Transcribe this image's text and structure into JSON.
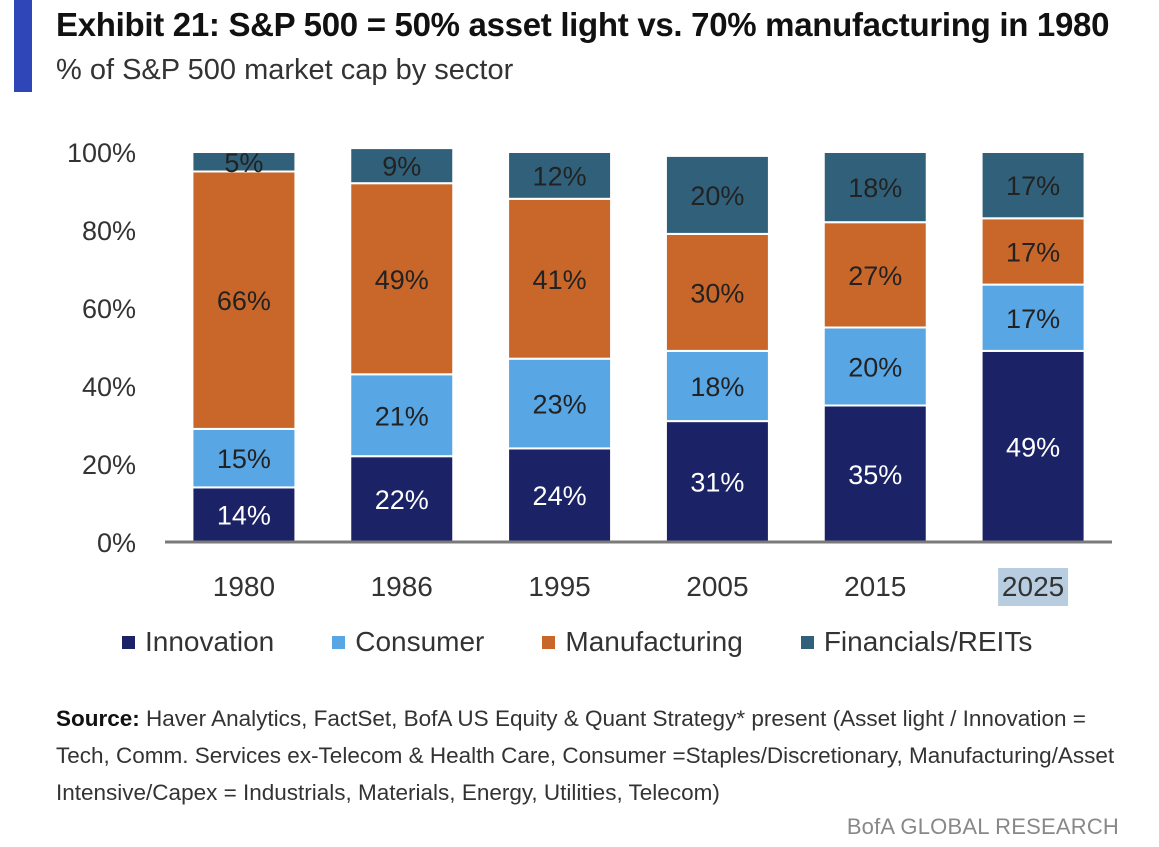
{
  "header": {
    "title": "Exhibit 21: S&P 500 = 50% asset light vs. 70% manufacturing in 1980",
    "subtitle": "% of S&P 500 market cap by sector"
  },
  "colors": {
    "accent": "#2f46b8",
    "Innovation": "#1b2366",
    "Consumer": "#59a6e5",
    "Manufacturing": "#c9672a",
    "Financials/REITs": "#31617a",
    "highlight": "#b9cde0"
  },
  "chart_data": {
    "type": "bar",
    "stacked": true,
    "categories": [
      "1980",
      "1986",
      "1995",
      "2005",
      "2015",
      "2025"
    ],
    "highlighted_category": "2025",
    "series": [
      {
        "name": "Innovation",
        "values": [
          14,
          22,
          24,
          31,
          35,
          49
        ],
        "labels": [
          "14%",
          "22%",
          "24%",
          "31%",
          "35%",
          "49%"
        ]
      },
      {
        "name": "Consumer",
        "values": [
          15,
          21,
          23,
          18,
          20,
          17
        ],
        "labels": [
          "15%",
          "21%",
          "23%",
          "18%",
          "20%",
          "17%"
        ]
      },
      {
        "name": "Manufacturing",
        "values": [
          66,
          49,
          41,
          30,
          27,
          17
        ],
        "labels": [
          "66%",
          "49%",
          "41%",
          "30%",
          "27%",
          "17%"
        ]
      },
      {
        "name": "Financials/REITs",
        "values": [
          5,
          9,
          12,
          20,
          18,
          17
        ],
        "labels": [
          "5%",
          "9%",
          "12%",
          "20%",
          "18%",
          "17%"
        ]
      }
    ],
    "ylim": [
      0,
      100
    ],
    "yticks": [
      "0%",
      "20%",
      "40%",
      "60%",
      "80%",
      "100%"
    ],
    "legend": [
      "Innovation",
      "Consumer",
      "Manufacturing",
      "Financials/REITs"
    ],
    "legend_position": "bottom"
  },
  "source": {
    "label": "Source:",
    "text": "Haver Analytics, FactSet, BofA US Equity & Quant Strategy* present (Asset light / Innovation = Tech, Comm. Services ex-Telecom & Health Care, Consumer =Staples/Discretionary, Manufacturing/Asset Intensive/Capex = Industrials, Materials, Energy, Utilities, Telecom)"
  },
  "footer": "BofA GLOBAL RESEARCH"
}
